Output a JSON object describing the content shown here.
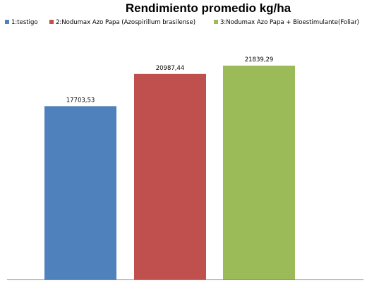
{
  "chart_data": {
    "type": "bar",
    "title": "Rendimiento promedio kg/ha",
    "xlabel": "",
    "ylabel": "",
    "ylim": [
      0,
      23000
    ],
    "grid": false,
    "legend_position": "top",
    "series": [
      {
        "name": "1:testigo",
        "value": 17703.53,
        "label": "17703,53",
        "color": "#4f81bd"
      },
      {
        "name": "2:Nodumax Azo Papa (Azospirillum brasilense)",
        "value": 20987.44,
        "label": "20987,44",
        "color": "#c0504d"
      },
      {
        "name": "3:Nodumax Azo Papa + Bioestimulante(Foliar)",
        "value": 21839.29,
        "label": "21839,29",
        "color": "#9bbb59"
      }
    ]
  }
}
